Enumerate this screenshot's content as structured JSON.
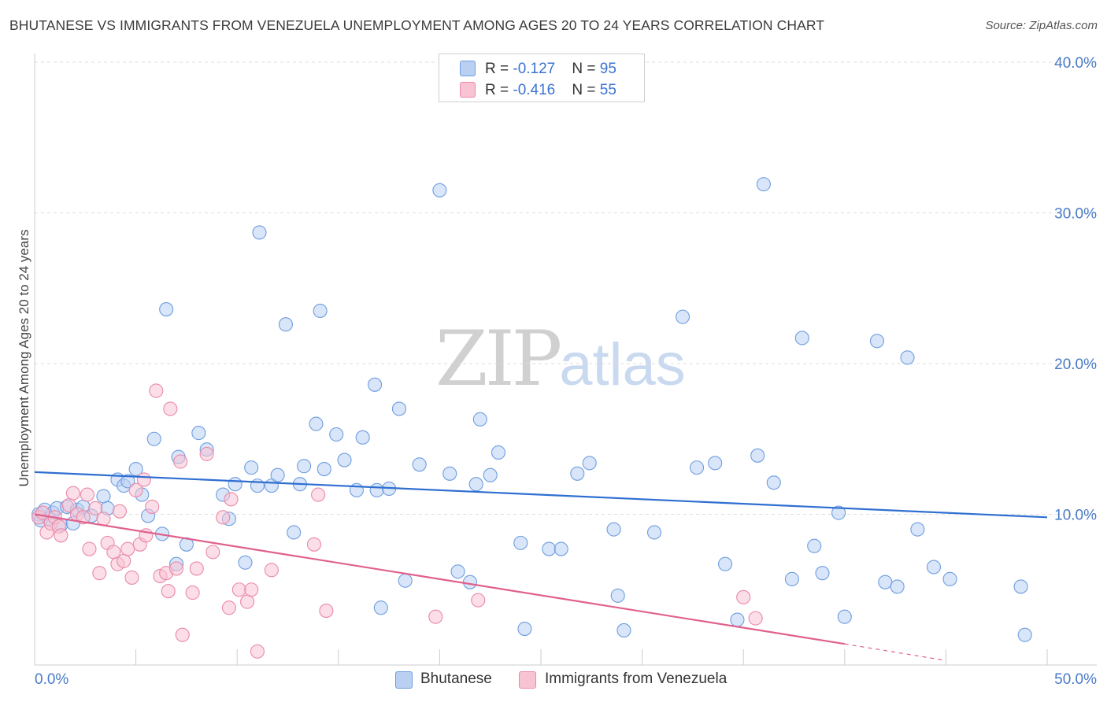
{
  "header": {
    "title": "BHUTANESE VS IMMIGRANTS FROM VENEZUELA UNEMPLOYMENT AMONG AGES 20 TO 24 YEARS CORRELATION CHART",
    "source": "Source: ZipAtlas.com"
  },
  "watermark": {
    "part1": "ZIP",
    "part2": "atlas"
  },
  "legend_top": {
    "rows": [
      {
        "r_label": "R = ",
        "r_value": "-0.127",
        "n_label": "N = ",
        "n_value": "95"
      },
      {
        "r_label": "R = ",
        "r_value": "-0.416",
        "n_label": "N = ",
        "n_value": "55"
      }
    ]
  },
  "legend_bottom": {
    "items": [
      "Bhutanese",
      "Immigrants from Venezuela"
    ]
  },
  "colors": {
    "blue_fill": "#b9d0f2",
    "blue_stroke": "#6e9ee0",
    "blue_line": "#2f6fd1",
    "pink_fill": "#f8c3d3",
    "pink_stroke": "#ea8aa8",
    "pink_line": "#e0608c",
    "grid": "#dddddd",
    "axis_label": "#4a7bc8"
  },
  "chart_data": {
    "type": "scatter",
    "title": "BHUTANESE VS IMMIGRANTS FROM VENEZUELA UNEMPLOYMENT AMONG AGES 20 TO 24 YEARS CORRELATION CHART",
    "xlabel": "",
    "ylabel": "Unemployment Among Ages 20 to 24 years",
    "xlim": [
      0,
      50
    ],
    "ylim": [
      0,
      40
    ],
    "x_tick_labels": [
      "0.0%",
      "50.0%"
    ],
    "y_ticks": [
      10,
      20,
      30,
      40
    ],
    "y_tick_labels": [
      "10.0%",
      "20.0%",
      "30.0%",
      "40.0%"
    ],
    "grid": true,
    "legend_position": "top-center",
    "series": [
      {
        "name": "Bhutanese",
        "r": -0.127,
        "n": 95,
        "trend": {
          "x": [
            0,
            50
          ],
          "y": [
            12.8,
            9.8
          ]
        },
        "points": [
          [
            0.2,
            10.0
          ],
          [
            0.3,
            9.6
          ],
          [
            0.5,
            10.3
          ],
          [
            0.7,
            9.7
          ],
          [
            0.9,
            10.1
          ],
          [
            1.1,
            10.4
          ],
          [
            1.3,
            9.3
          ],
          [
            1.6,
            10.5
          ],
          [
            1.9,
            9.4
          ],
          [
            2.1,
            10.3
          ],
          [
            2.4,
            10.5
          ],
          [
            2.8,
            9.9
          ],
          [
            3.4,
            11.2
          ],
          [
            3.6,
            10.4
          ],
          [
            4.1,
            12.3
          ],
          [
            4.4,
            11.9
          ],
          [
            4.6,
            12.2
          ],
          [
            5.0,
            13.0
          ],
          [
            5.3,
            11.3
          ],
          [
            5.6,
            9.9
          ],
          [
            5.9,
            15.0
          ],
          [
            6.3,
            8.7
          ],
          [
            6.5,
            23.6
          ],
          [
            7.0,
            6.7
          ],
          [
            7.1,
            13.8
          ],
          [
            7.5,
            8.0
          ],
          [
            8.1,
            15.4
          ],
          [
            8.5,
            14.3
          ],
          [
            9.3,
            11.3
          ],
          [
            9.6,
            9.7
          ],
          [
            9.9,
            12.0
          ],
          [
            10.4,
            6.8
          ],
          [
            10.7,
            13.1
          ],
          [
            11.0,
            11.9
          ],
          [
            11.1,
            28.7
          ],
          [
            11.7,
            11.9
          ],
          [
            12.0,
            12.6
          ],
          [
            12.4,
            22.6
          ],
          [
            12.8,
            8.8
          ],
          [
            13.1,
            12.0
          ],
          [
            13.3,
            13.2
          ],
          [
            13.9,
            16.0
          ],
          [
            14.1,
            23.5
          ],
          [
            14.3,
            13.0
          ],
          [
            14.9,
            15.3
          ],
          [
            15.3,
            13.6
          ],
          [
            15.9,
            11.6
          ],
          [
            16.2,
            15.1
          ],
          [
            16.8,
            18.6
          ],
          [
            16.9,
            11.6
          ],
          [
            17.1,
            3.8
          ],
          [
            17.5,
            11.7
          ],
          [
            18.0,
            17.0
          ],
          [
            18.3,
            5.6
          ],
          [
            19.0,
            13.3
          ],
          [
            20.0,
            31.5
          ],
          [
            20.5,
            12.7
          ],
          [
            20.9,
            6.2
          ],
          [
            21.5,
            5.5
          ],
          [
            21.8,
            12.0
          ],
          [
            22.0,
            16.3
          ],
          [
            22.5,
            12.6
          ],
          [
            22.9,
            14.1
          ],
          [
            24.0,
            8.1
          ],
          [
            24.2,
            2.4
          ],
          [
            25.4,
            7.7
          ],
          [
            26.0,
            7.7
          ],
          [
            26.8,
            12.7
          ],
          [
            27.4,
            13.4
          ],
          [
            28.6,
            9.0
          ],
          [
            28.8,
            4.6
          ],
          [
            29.1,
            2.3
          ],
          [
            30.6,
            8.8
          ],
          [
            32.0,
            23.1
          ],
          [
            32.7,
            13.1
          ],
          [
            33.6,
            13.4
          ],
          [
            34.1,
            6.7
          ],
          [
            34.7,
            3.0
          ],
          [
            35.7,
            13.9
          ],
          [
            36.0,
            31.9
          ],
          [
            36.5,
            12.1
          ],
          [
            37.4,
            5.7
          ],
          [
            37.9,
            21.7
          ],
          [
            38.5,
            7.9
          ],
          [
            38.9,
            6.1
          ],
          [
            39.7,
            10.1
          ],
          [
            40.0,
            3.2
          ],
          [
            41.6,
            21.5
          ],
          [
            42.0,
            5.5
          ],
          [
            42.6,
            5.2
          ],
          [
            43.1,
            20.4
          ],
          [
            43.6,
            9.0
          ],
          [
            44.4,
            6.5
          ],
          [
            45.2,
            5.7
          ],
          [
            48.7,
            5.2
          ],
          [
            48.9,
            2.0
          ]
        ]
      },
      {
        "name": "Immigrants from Venezuela",
        "r": -0.416,
        "n": 55,
        "trend": {
          "x": [
            0,
            40
          ],
          "y": [
            10.0,
            1.4
          ]
        },
        "trend_dashed": {
          "x": [
            40,
            45
          ],
          "y": [
            1.4,
            0.3
          ]
        },
        "points": [
          [
            0.2,
            9.8
          ],
          [
            0.4,
            10.1
          ],
          [
            0.6,
            8.8
          ],
          [
            0.8,
            9.4
          ],
          [
            1.0,
            9.8
          ],
          [
            1.2,
            9.2
          ],
          [
            1.3,
            8.6
          ],
          [
            1.7,
            10.6
          ],
          [
            1.9,
            11.4
          ],
          [
            2.1,
            10.0
          ],
          [
            2.4,
            9.8
          ],
          [
            2.6,
            11.3
          ],
          [
            2.7,
            7.7
          ],
          [
            3.0,
            10.4
          ],
          [
            3.2,
            6.1
          ],
          [
            3.4,
            9.7
          ],
          [
            3.6,
            8.1
          ],
          [
            3.9,
            7.5
          ],
          [
            4.1,
            6.7
          ],
          [
            4.2,
            10.2
          ],
          [
            4.4,
            6.9
          ],
          [
            4.6,
            7.7
          ],
          [
            4.8,
            5.8
          ],
          [
            5.0,
            11.6
          ],
          [
            5.2,
            8.0
          ],
          [
            5.4,
            12.3
          ],
          [
            5.5,
            8.6
          ],
          [
            5.8,
            10.5
          ],
          [
            6.0,
            18.2
          ],
          [
            6.2,
            5.9
          ],
          [
            6.5,
            6.1
          ],
          [
            6.6,
            4.9
          ],
          [
            6.7,
            17.0
          ],
          [
            7.0,
            6.4
          ],
          [
            7.2,
            13.5
          ],
          [
            7.3,
            2.0
          ],
          [
            7.8,
            4.8
          ],
          [
            8.0,
            6.4
          ],
          [
            8.5,
            14.0
          ],
          [
            8.8,
            7.5
          ],
          [
            9.3,
            9.8
          ],
          [
            9.6,
            3.8
          ],
          [
            9.7,
            11.0
          ],
          [
            10.1,
            5.0
          ],
          [
            10.5,
            4.2
          ],
          [
            10.7,
            5.0
          ],
          [
            11.0,
            0.9
          ],
          [
            11.7,
            6.3
          ],
          [
            13.8,
            8.0
          ],
          [
            14.0,
            11.3
          ],
          [
            14.4,
            3.6
          ],
          [
            19.8,
            3.2
          ],
          [
            21.9,
            4.3
          ],
          [
            35.0,
            4.5
          ],
          [
            35.6,
            3.1
          ]
        ]
      }
    ]
  }
}
